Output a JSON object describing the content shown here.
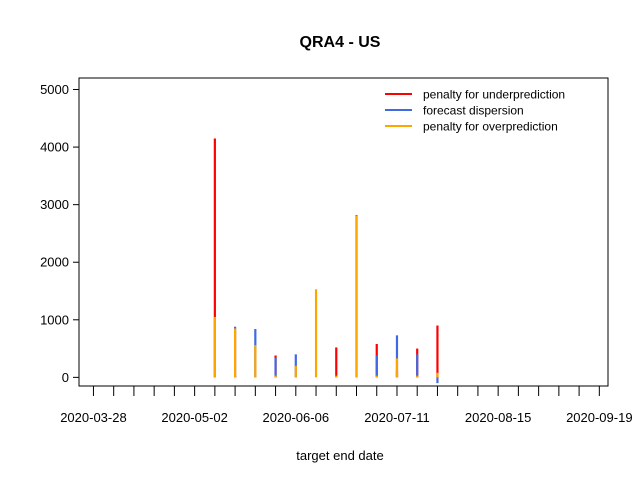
{
  "chart_data": {
    "type": "bar",
    "title": "QRA4 - US",
    "xlabel": "target end date",
    "ylabel": "",
    "ylim": [
      -150,
      5200
    ],
    "y_ticks": [
      0,
      1000,
      2000,
      3000,
      4000,
      5000
    ],
    "x_tick_labels": [
      "2020-03-28",
      "2020-05-02",
      "2020-06-06",
      "2020-07-11",
      "2020-08-15",
      "2020-09-19"
    ],
    "x_tick_dates": [
      "2020-03-28",
      "2020-04-04",
      "2020-04-11",
      "2020-04-18",
      "2020-04-25",
      "2020-05-02",
      "2020-05-09",
      "2020-05-16",
      "2020-05-23",
      "2020-05-30",
      "2020-06-06",
      "2020-06-13",
      "2020-06-20",
      "2020-06-27",
      "2020-07-04",
      "2020-07-11",
      "2020-07-18",
      "2020-07-25",
      "2020-08-01",
      "2020-08-08",
      "2020-08-15",
      "2020-08-22",
      "2020-08-29",
      "2020-09-05",
      "2020-09-12",
      "2020-09-19"
    ],
    "xlim": [
      "2020-03-23",
      "2020-09-22"
    ],
    "grid": false,
    "legend_position": "top-right",
    "dates": [
      "2020-05-09",
      "2020-05-16",
      "2020-05-23",
      "2020-05-30",
      "2020-06-06",
      "2020-06-13",
      "2020-06-20",
      "2020-06-27",
      "2020-07-04",
      "2020-07-11",
      "2020-07-18",
      "2020-07-25"
    ],
    "series": [
      {
        "name": "penalty for underprediction",
        "color": "#ff0000",
        "values": [
          4150,
          30,
          0,
          380,
          0,
          0,
          520,
          0,
          580,
          120,
          500,
          900
        ]
      },
      {
        "name": "forecast dispersion",
        "color": "#4169e1",
        "values": [
          0,
          880,
          840,
          340,
          400,
          0,
          0,
          2820,
          380,
          730,
          400,
          -100
        ]
      },
      {
        "name": "penalty for overprediction",
        "color": "#ffa500",
        "values": [
          1050,
          850,
          560,
          30,
          200,
          1530,
          30,
          2810,
          30,
          330,
          30,
          80
        ]
      }
    ]
  }
}
